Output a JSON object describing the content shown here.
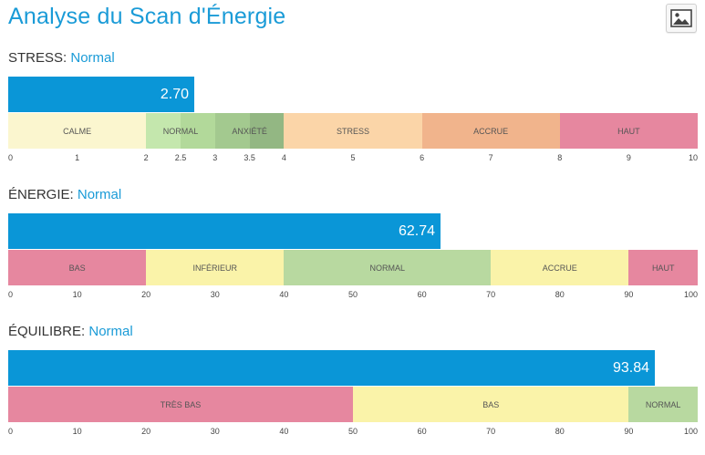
{
  "title": "Analyse du Scan d'Énergie",
  "icons": {
    "image_button": "image-icon"
  },
  "colors": {
    "accent": "#1a9bd7",
    "value_bar": "#0a96d7"
  },
  "sections": [
    {
      "label": "STRESS:",
      "status": "Normal",
      "value": 2.7,
      "value_text": "2.70",
      "scale": [
        0,
        10
      ],
      "tick_values": [
        0,
        1,
        2,
        2.5,
        3,
        3.5,
        4,
        5,
        6,
        7,
        8,
        9,
        10
      ],
      "ticks": [
        "0",
        "1",
        "2",
        "2.5",
        "3",
        "3.5",
        "4",
        "5",
        "6",
        "7",
        "8",
        "9",
        "10"
      ],
      "zones": [
        {
          "label": "CALME",
          "from": 0,
          "to": 2,
          "color": "#fbf6cf"
        },
        {
          "label": "NORMAL",
          "from": 2,
          "to": 3,
          "color": "#c4e7ad"
        },
        {
          "label": "ANXIÉTÉ",
          "from": 3,
          "to": 4,
          "color": "#a3c98f"
        },
        {
          "label": "STRESS",
          "from": 4,
          "to": 6,
          "color": "#fbd5a8"
        },
        {
          "label": "ACCRUE",
          "from": 6,
          "to": 8,
          "color": "#f1b48c"
        },
        {
          "label": "HAUT",
          "from": 8,
          "to": 10,
          "color": "#e6879f"
        }
      ],
      "overlays": [
        {
          "from": 2.5,
          "to": 3,
          "color": "#b2d99a"
        },
        {
          "from": 3.5,
          "to": 4,
          "color": "#93b783"
        }
      ]
    },
    {
      "label": "ÉNERGIE:",
      "status": "Normal",
      "value": 62.74,
      "value_text": "62.74",
      "scale": [
        0,
        100
      ],
      "tick_values": [
        0,
        10,
        20,
        30,
        40,
        50,
        60,
        70,
        80,
        90,
        100
      ],
      "ticks": [
        "0",
        "10",
        "20",
        "30",
        "40",
        "50",
        "60",
        "70",
        "80",
        "90",
        "100"
      ],
      "zones": [
        {
          "label": "BAS",
          "from": 0,
          "to": 20,
          "color": "#e6879f"
        },
        {
          "label": "INFÉRIEUR",
          "from": 20,
          "to": 40,
          "color": "#faf3a9"
        },
        {
          "label": "NORMAL",
          "from": 40,
          "to": 70,
          "color": "#b8d9a0"
        },
        {
          "label": "ACCRUE",
          "from": 70,
          "to": 90,
          "color": "#faf3a9"
        },
        {
          "label": "HAUT",
          "from": 90,
          "to": 100,
          "color": "#e6879f"
        }
      ],
      "overlays": []
    },
    {
      "label": "ÉQUILIBRE:",
      "status": "Normal",
      "value": 93.84,
      "value_text": "93.84",
      "scale": [
        0,
        100
      ],
      "tick_values": [
        0,
        10,
        20,
        30,
        40,
        50,
        60,
        70,
        80,
        90,
        100
      ],
      "ticks": [
        "0",
        "10",
        "20",
        "30",
        "40",
        "50",
        "60",
        "70",
        "80",
        "90",
        "100"
      ],
      "zones": [
        {
          "label": "TRÈS BAS",
          "from": 0,
          "to": 50,
          "color": "#e6879f"
        },
        {
          "label": "BAS",
          "from": 50,
          "to": 90,
          "color": "#faf3a9"
        },
        {
          "label": "NORMAL",
          "from": 90,
          "to": 100,
          "color": "#b8d9a0"
        }
      ],
      "overlays": []
    }
  ]
}
